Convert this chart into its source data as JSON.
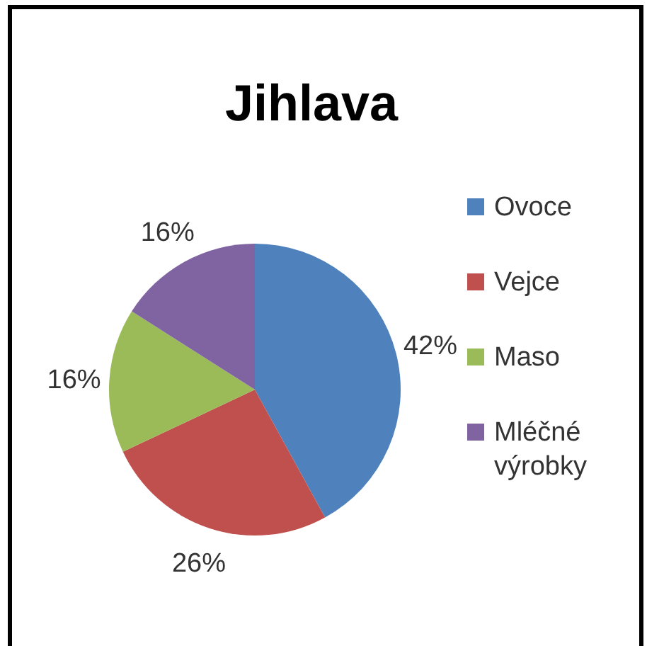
{
  "chart_data": {
    "type": "pie",
    "title": "Jihlava",
    "categories": [
      "Ovoce",
      "Vejce",
      "Maso",
      "Mléčné výrobky"
    ],
    "values": [
      42,
      26,
      16,
      16
    ],
    "colors": [
      "#4f81bd",
      "#c0504d",
      "#9bbb59",
      "#8064a2"
    ],
    "value_labels": [
      "42%",
      "26%",
      "16%",
      "16%"
    ],
    "legend": "right"
  }
}
